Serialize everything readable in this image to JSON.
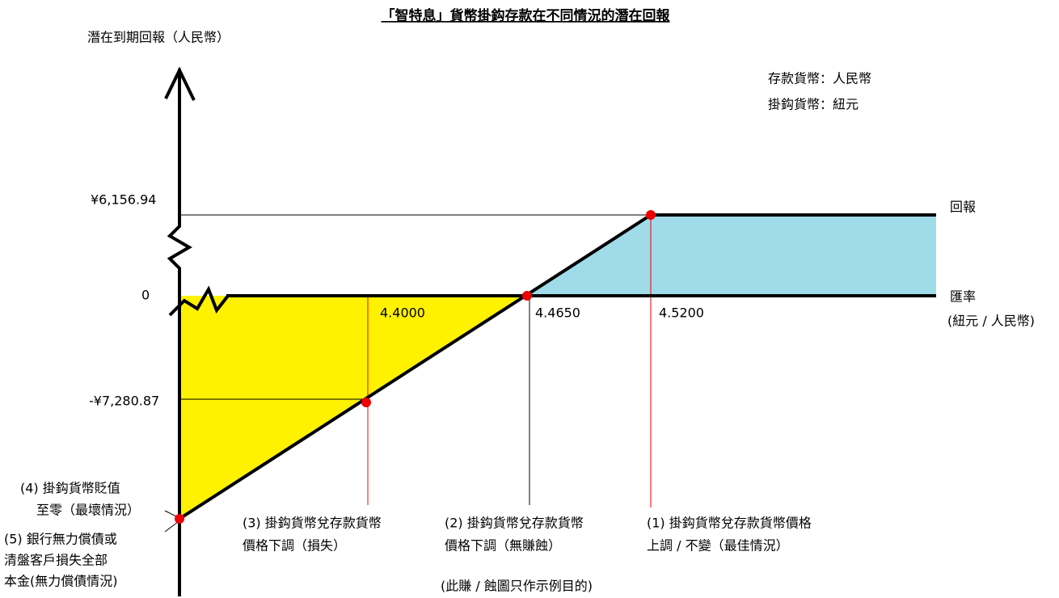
{
  "title": "「智特息」貨幣掛鈎存款在不同情況的潛在回報",
  "y_axis_label": "潛在到期回報（人民幣）",
  "currency_notes": [
    "存款貨幣：人民幣",
    "掛鈎貨幣：紐元"
  ],
  "y_labels": [
    "¥6,156.94",
    "0",
    "-¥7,280.87"
  ],
  "x_labels": [
    "4.4000",
    "4.4650",
    "4.5200"
  ],
  "line_labels": {
    "return": "回報",
    "rate": "匯率",
    "rate_unit": "(紐元 / 人民幣)"
  },
  "scenarios": [
    [
      "(1)  掛鈎貨幣兌存款貨幣價格",
      "上調 / 不變（最佳情況）"
    ],
    [
      "(2)  掛鈎貨幣兌存款貨幣",
      "價格下調（無賺蝕）"
    ],
    [
      "(3)  掛鈎貨幣兌存款貨幣",
      "價格下調（損失）"
    ],
    [
      "(4) 掛鈎貨幣貶值",
      "至零（最壞情況）"
    ],
    [
      "(5) 銀行無力償債或",
      "清盤客戶損失全部",
      "本金(無力償債情況)"
    ]
  ],
  "footnote": "(此賺 / 蝕圖只作示例目的)"
}
